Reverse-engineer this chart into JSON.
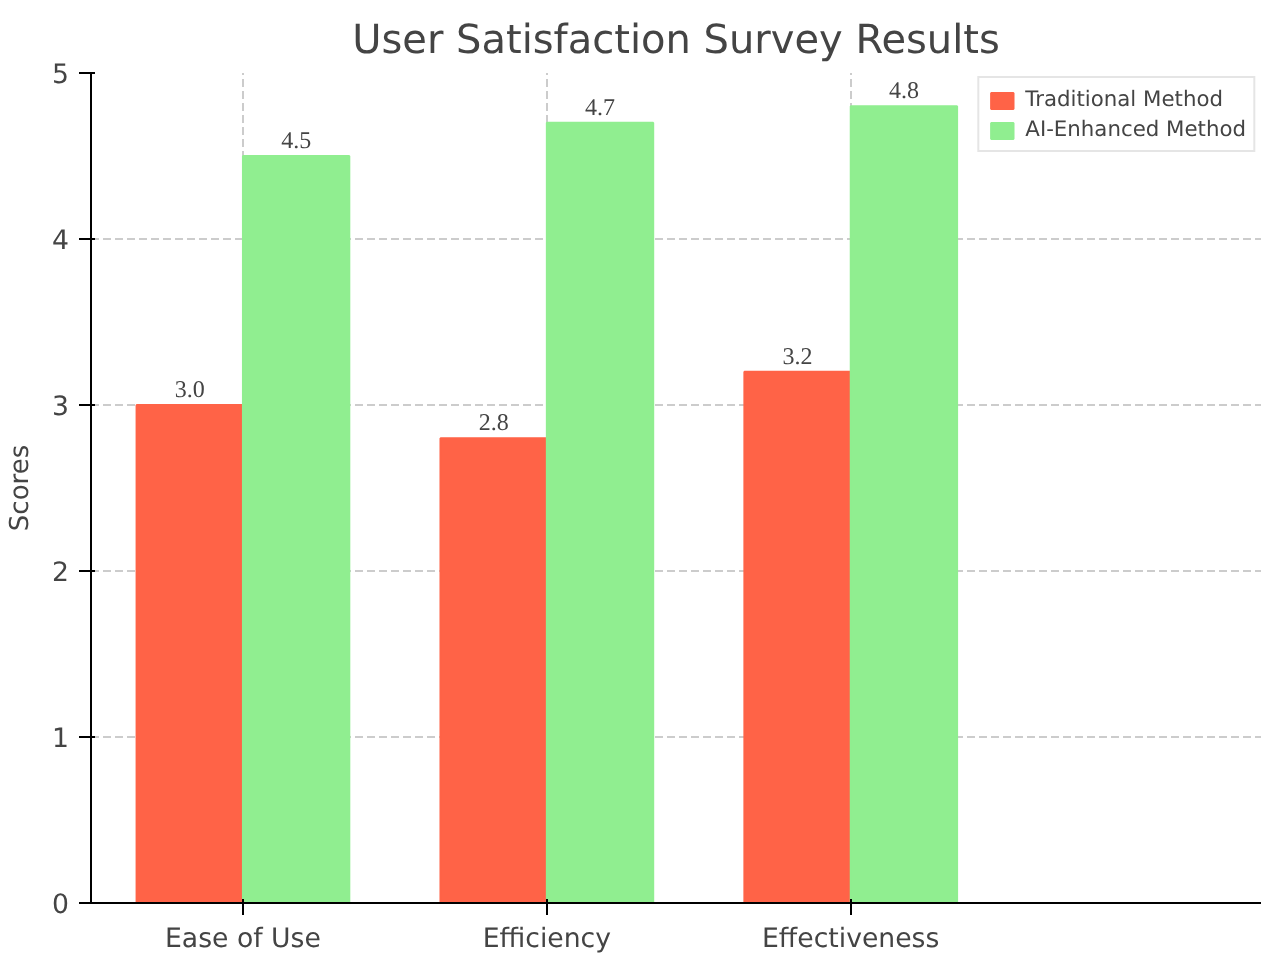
{
  "chart_data": {
    "type": "bar",
    "title": "User Satisfaction Survey Results",
    "ylabel": "Scores",
    "categories": [
      "Ease of Use",
      "Efficiency",
      "Effectiveness"
    ],
    "series": [
      {
        "name": "Traditional Method",
        "color": "#ff6347",
        "values": [
          3.0,
          2.8,
          3.2
        ],
        "value_labels": [
          "3.0",
          "2.8",
          "3.2"
        ]
      },
      {
        "name": "AI-Enhanced Method",
        "color": "#90ee90",
        "values": [
          4.5,
          4.7,
          4.8
        ],
        "value_labels": [
          "4.5",
          "4.7",
          "4.8"
        ]
      }
    ],
    "ylim": [
      0,
      5
    ],
    "yticks": [
      0,
      1,
      2,
      3,
      4,
      5
    ],
    "grid": true,
    "legend": "top right"
  }
}
